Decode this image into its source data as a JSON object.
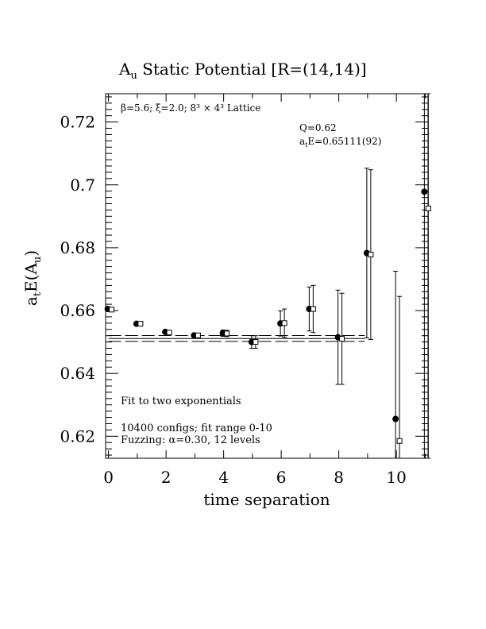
{
  "chart_data": {
    "type": "scatter",
    "title_main": "A",
    "title_sub": "u",
    "title_rest": " Static Potential [R=(14,14)]",
    "xlabel": "time separation",
    "ylabel_parts": [
      "a",
      "t",
      "E(A",
      "u",
      ")"
    ],
    "xlim": [
      -0.1,
      11.1
    ],
    "ylim": [
      0.613,
      0.729
    ],
    "x_ticks": [
      0,
      2,
      4,
      6,
      8,
      10
    ],
    "x_tick_labels": [
      "0",
      "2",
      "4",
      "6",
      "8",
      "10"
    ],
    "y_ticks": [
      0.62,
      0.64,
      0.66,
      0.68,
      0.7,
      0.72
    ],
    "y_tick_labels": [
      "0.62",
      "0.64",
      "0.66",
      "0.68",
      "0.7",
      "0.72"
    ],
    "annotation_top_left": "β=5.6; ξ=2.0; 8³ × 4³ Lattice",
    "annotation_q": "Q=0.62",
    "annotation_fit_parts": [
      "a",
      "t",
      "E=0.65111(92)"
    ],
    "annotation_fit_type": "Fit to two exponentials",
    "annotation_configs": "10400 configs; fit range 0-10",
    "annotation_fuzzing": "Fuzzing: α=0.30, 12 levels",
    "fit_line": {
      "value": 0.65111,
      "error": 0.00092,
      "x_range": [
        0,
        8.9
      ]
    },
    "series": [
      {
        "marker": "filled-circle",
        "points": [
          {
            "x": 0,
            "y": 0.6605,
            "err": 0.0003
          },
          {
            "x": 1,
            "y": 0.6558,
            "err": 0.0004
          },
          {
            "x": 2,
            "y": 0.6532,
            "err": 0.0005
          },
          {
            "x": 3,
            "y": 0.6521,
            "err": 0.0006
          },
          {
            "x": 4,
            "y": 0.6528,
            "err": 0.001
          },
          {
            "x": 5,
            "y": 0.65,
            "err": 0.002
          },
          {
            "x": 6,
            "y": 0.6559,
            "err": 0.004
          },
          {
            "x": 7,
            "y": 0.6605,
            "err": 0.007
          },
          {
            "x": 8,
            "y": 0.6515,
            "err": 0.015
          },
          {
            "x": 9,
            "y": 0.6783,
            "err": 0.027
          },
          {
            "x": 10,
            "y": 0.6255,
            "err": 0.047
          },
          {
            "x": 11,
            "y": 0.6978,
            "err": 0.1
          }
        ]
      },
      {
        "marker": "open-square",
        "points": [
          {
            "x": 0,
            "y": 0.6603,
            "err": 0.0003
          },
          {
            "x": 1,
            "y": 0.6558,
            "err": 0.0004
          },
          {
            "x": 2,
            "y": 0.653,
            "err": 0.0005
          },
          {
            "x": 3,
            "y": 0.6521,
            "err": 0.0006
          },
          {
            "x": 4,
            "y": 0.6527,
            "err": 0.001
          },
          {
            "x": 5,
            "y": 0.65,
            "err": 0.002
          },
          {
            "x": 6,
            "y": 0.656,
            "err": 0.0045
          },
          {
            "x": 7,
            "y": 0.6605,
            "err": 0.0075
          },
          {
            "x": 8,
            "y": 0.651,
            "err": 0.0145
          },
          {
            "x": 9,
            "y": 0.6778,
            "err": 0.027
          },
          {
            "x": 10,
            "y": 0.6185,
            "err": 0.046
          },
          {
            "x": 11,
            "y": 0.6925,
            "err": 0.1
          }
        ]
      }
    ]
  }
}
